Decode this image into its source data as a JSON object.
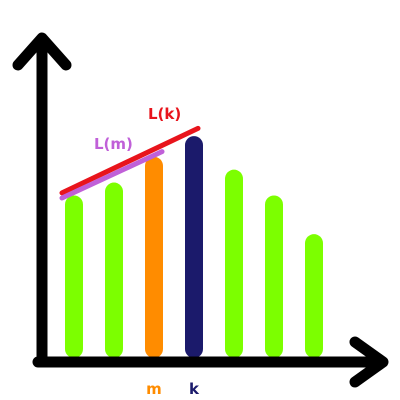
{
  "chart_data": {
    "type": "bar",
    "title": "",
    "xlabel": "",
    "ylabel": "",
    "ylim": [
      0,
      1
    ],
    "bars": [
      {
        "value": 0.63,
        "color": "#7cff00",
        "tick": ""
      },
      {
        "value": 0.68,
        "color": "#7cff00",
        "tick": ""
      },
      {
        "value": 0.78,
        "color": "#ff8c00",
        "tick": "m"
      },
      {
        "value": 0.86,
        "color": "#1b1a6b",
        "tick": "k"
      },
      {
        "value": 0.73,
        "color": "#7cff00",
        "tick": ""
      },
      {
        "value": 0.63,
        "color": "#7cff00",
        "tick": ""
      },
      {
        "value": 0.48,
        "color": "#7cff00",
        "tick": ""
      }
    ],
    "lines": [
      {
        "label": "L(k)",
        "color": "#e8141c",
        "from": {
          "x": 0,
          "y": 0.64
        },
        "to": {
          "x": 3.1,
          "y": 0.89
        }
      },
      {
        "label": "L(m)",
        "color": "#c060d8",
        "from": {
          "x": 0,
          "y": 0.62
        },
        "to": {
          "x": 2.2,
          "y": 0.8
        }
      }
    ],
    "axes": {
      "color": "#000000"
    }
  }
}
